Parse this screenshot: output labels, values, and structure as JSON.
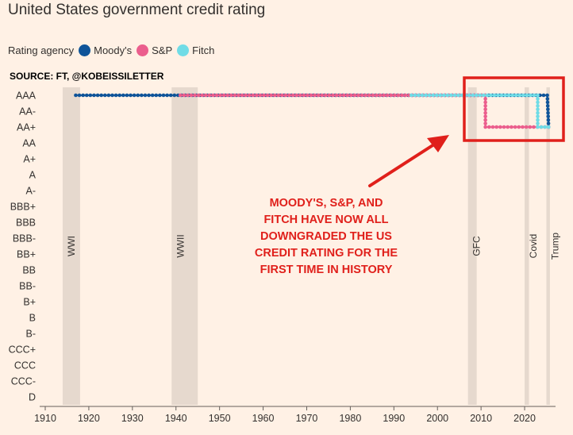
{
  "page_title": "United States government credit rating",
  "source": "SOURCE: FT, @KOBEISSILETTER",
  "annotation": {
    "lines": [
      "MOODY'S, S&P, AND",
      "FITCH HAVE NOW ALL",
      "DOWNGRADED THE US",
      "CREDIT RATING FOR THE",
      "FIRST TIME IN HISTORY"
    ],
    "color": "#e0201b"
  },
  "chart_data": {
    "type": "line",
    "title": "United States government credit rating",
    "legend_title": "Rating agency",
    "legend_position": "top-left",
    "x_ticks": [
      1910,
      1920,
      1930,
      1940,
      1950,
      1960,
      1970,
      1980,
      1990,
      2000,
      2010,
      2020
    ],
    "xlim": [
      1910,
      2026
    ],
    "y_categories": [
      "AAA",
      "AA-",
      "AA+",
      "AA",
      "A+",
      "A",
      "A-",
      "BBB+",
      "BBB",
      "BBB-",
      "BB+",
      "BB",
      "BB-",
      "B+",
      "B",
      "B-",
      "CCC+",
      "CCC",
      "CCC-",
      "D"
    ],
    "grid": false,
    "shaded_periods": [
      {
        "label": "WWI",
        "start": 1914,
        "end": 1918
      },
      {
        "label": "WWII",
        "start": 1939,
        "end": 1945
      },
      {
        "label": "GFC",
        "start": 2007,
        "end": 2009
      },
      {
        "label": "Covid",
        "start": 2020,
        "end": 2021
      },
      {
        "label": "Trump",
        "start": 2025,
        "end": 2025.8
      }
    ],
    "series": [
      {
        "name": "Moody's",
        "color": "#0f5499",
        "points": [
          [
            1917,
            "AAA"
          ],
          [
            2025.2,
            "AAA"
          ],
          [
            2025.5,
            "AA+"
          ]
        ]
      },
      {
        "name": "S&P",
        "color": "#eb5e8d",
        "points": [
          [
            1941,
            "AAA"
          ],
          [
            2011,
            "AAA"
          ],
          [
            2011,
            "AA+"
          ],
          [
            2025.5,
            "AA+"
          ]
        ]
      },
      {
        "name": "Fitch",
        "color": "#70dce6",
        "points": [
          [
            1994,
            "AAA"
          ],
          [
            2023,
            "AAA"
          ],
          [
            2023,
            "AA+"
          ],
          [
            2025.5,
            "AA+"
          ]
        ]
      }
    ],
    "highlight_box_color": "#e0201b"
  }
}
